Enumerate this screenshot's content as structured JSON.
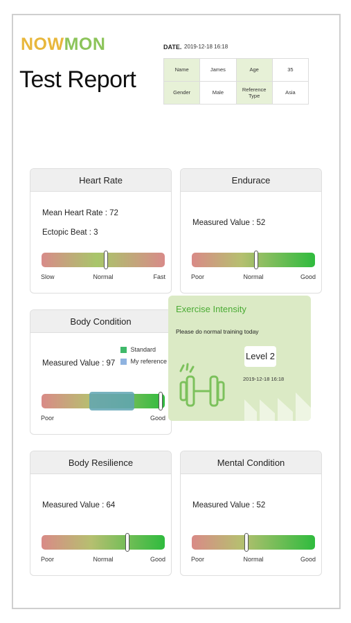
{
  "brand": {
    "part1": "NOW",
    "part2": "MON"
  },
  "title": "Test Report",
  "date": {
    "label": "DATE.",
    "value": "2019-12-18 16:18"
  },
  "info": {
    "name_label": "Name",
    "name_value": "James",
    "age_label": "Age",
    "age_value": "35",
    "gender_label": "Gender",
    "gender_value": "Male",
    "ref_label": "Reference Type",
    "ref_value": "Asia"
  },
  "heart_rate": {
    "title": "Heart Rate",
    "line1": "Mean Heart Rate : 72",
    "line2": "Ectopic Beat : 3",
    "ticks": {
      "left": "Slow",
      "center": "Normal",
      "right": "Fast"
    },
    "level": 0.53
  },
  "endurance": {
    "title": "Endurace",
    "line1": "Measured Value : 52",
    "ticks": {
      "left": "Poor",
      "center": "Normal",
      "right": "Good"
    },
    "level": 0.53
  },
  "body_condition": {
    "title": "Body Condition",
    "line1": "Measured Value : 97",
    "legend": {
      "standard": "Standard",
      "my_reference": "My reference"
    },
    "legend_colors": {
      "standard": "#3fb96a",
      "my_reference": "#8fb3e0"
    },
    "ticks": {
      "left": "Poor",
      "right": "Good"
    },
    "level": 0.97
  },
  "exercise": {
    "title": "Exercise Intensity",
    "message": "Please do normal training today",
    "level": "Level 2",
    "date": "2019-12-18 16:18",
    "icon": "dumbbell-icon"
  },
  "body_resilience": {
    "title": "Body Resilience",
    "line1": "Measured Value : 64",
    "ticks": {
      "left": "Poor",
      "center": "Normal",
      "right": "Good"
    },
    "level": 0.7
  },
  "mental_condition": {
    "title": "Mental Condition",
    "line1": "Measured Value : 52",
    "ticks": {
      "left": "Poor",
      "center": "Normal",
      "right": "Good"
    },
    "level": 0.45
  },
  "colors": {
    "brand_yellow": "#e8b73c",
    "brand_green": "#8cc45a",
    "accent_green": "#4aab34"
  }
}
